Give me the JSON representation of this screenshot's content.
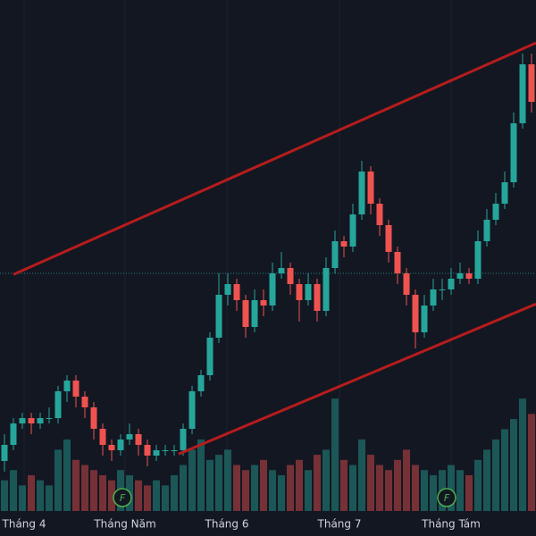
{
  "chart_data": {
    "type": "candlestick",
    "up_color": "#26a69a",
    "down_color": "#ef5350",
    "ohlc": [
      [
        14,
        19,
        12,
        17
      ],
      [
        17,
        22,
        16,
        21
      ],
      [
        21,
        23,
        20,
        22
      ],
      [
        22,
        23,
        19,
        21
      ],
      [
        21,
        23,
        20,
        22
      ],
      [
        22,
        24,
        21,
        22
      ],
      [
        22,
        28,
        21,
        27
      ],
      [
        27,
        30,
        25,
        29
      ],
      [
        29,
        30,
        24,
        26
      ],
      [
        26,
        27,
        22,
        24
      ],
      [
        24,
        25,
        18,
        20
      ],
      [
        20,
        21,
        15,
        17
      ],
      [
        17,
        18,
        14,
        16
      ],
      [
        16,
        19,
        15,
        18
      ],
      [
        18,
        21,
        17,
        19
      ],
      [
        19,
        20,
        15,
        17
      ],
      [
        17,
        18,
        13,
        15
      ],
      [
        15,
        17,
        14,
        16
      ],
      [
        16,
        17,
        15,
        16
      ],
      [
        16,
        17,
        15,
        16
      ],
      [
        16,
        21,
        15,
        20
      ],
      [
        20,
        28,
        19,
        27
      ],
      [
        27,
        31,
        26,
        30
      ],
      [
        30,
        38,
        29,
        37
      ],
      [
        37,
        49,
        36,
        45
      ],
      [
        45,
        49,
        43,
        47
      ],
      [
        47,
        48,
        42,
        44
      ],
      [
        44,
        45,
        37,
        39
      ],
      [
        39,
        46,
        38,
        44
      ],
      [
        44,
        46,
        41,
        43
      ],
      [
        43,
        51,
        42,
        49
      ],
      [
        49,
        53,
        48,
        50
      ],
      [
        50,
        51,
        45,
        47
      ],
      [
        47,
        48,
        40,
        44
      ],
      [
        44,
        49,
        43,
        47
      ],
      [
        47,
        48,
        40,
        42
      ],
      [
        42,
        52,
        41,
        50
      ],
      [
        50,
        57,
        49,
        55
      ],
      [
        55,
        56,
        52,
        54
      ],
      [
        54,
        62,
        53,
        60
      ],
      [
        60,
        70,
        59,
        68
      ],
      [
        68,
        69,
        60,
        62
      ],
      [
        62,
        63,
        56,
        58
      ],
      [
        58,
        59,
        51,
        53
      ],
      [
        53,
        54,
        47,
        49
      ],
      [
        49,
        50,
        43,
        45
      ],
      [
        45,
        46,
        35,
        38
      ],
      [
        38,
        45,
        37,
        43
      ],
      [
        43,
        48,
        42,
        46
      ],
      [
        46,
        48,
        44,
        46
      ],
      [
        46,
        50,
        45,
        48
      ],
      [
        48,
        51,
        47,
        49
      ],
      [
        49,
        50,
        47,
        48
      ],
      [
        48,
        57,
        47,
        55
      ],
      [
        55,
        61,
        54,
        59
      ],
      [
        59,
        64,
        58,
        62
      ],
      [
        62,
        68,
        61,
        66
      ],
      [
        66,
        79,
        65,
        77
      ],
      [
        77,
        90,
        76,
        88
      ],
      [
        88,
        90,
        79,
        81
      ]
    ],
    "volume": {
      "axis": "y2",
      "values": [
        6,
        8,
        5,
        7,
        6,
        5,
        12,
        14,
        10,
        9,
        8,
        7,
        6,
        8,
        7,
        6,
        5,
        6,
        5,
        7,
        9,
        12,
        14,
        10,
        11,
        12,
        9,
        8,
        9,
        10,
        8,
        7,
        9,
        10,
        8,
        11,
        12,
        22,
        10,
        9,
        14,
        11,
        9,
        8,
        10,
        12,
        9,
        8,
        7,
        8,
        9,
        8,
        7,
        10,
        12,
        14,
        16,
        18,
        22,
        19
      ]
    },
    "ylim": [
      0,
      100
    ],
    "y2lim": [
      0,
      100
    ],
    "xlim": [
      -0.5,
      59.5
    ],
    "xticks": [
      {
        "value": 2.2,
        "label": "Tháng 4"
      },
      {
        "value": 13.5,
        "label": "Tháng Năm"
      },
      {
        "value": 24.9,
        "label": "Tháng 6"
      },
      {
        "value": 37.5,
        "label": "Tháng 7"
      },
      {
        "value": 50,
        "label": "Tháng Tám"
      }
    ],
    "grid": true,
    "trendlines": [
      {
        "color": "#b71c1c",
        "x": [
          1,
          59.5
        ],
        "y": [
          48.8,
          92
        ]
      },
      {
        "color": "#b71c1c",
        "x": [
          19.5,
          59.5
        ],
        "y": [
          15.3,
          43.3
        ]
      }
    ],
    "price_line": 49,
    "events": [
      {
        "x": 13.2,
        "label": "F"
      },
      {
        "x": 49.5,
        "label": "F"
      }
    ]
  }
}
